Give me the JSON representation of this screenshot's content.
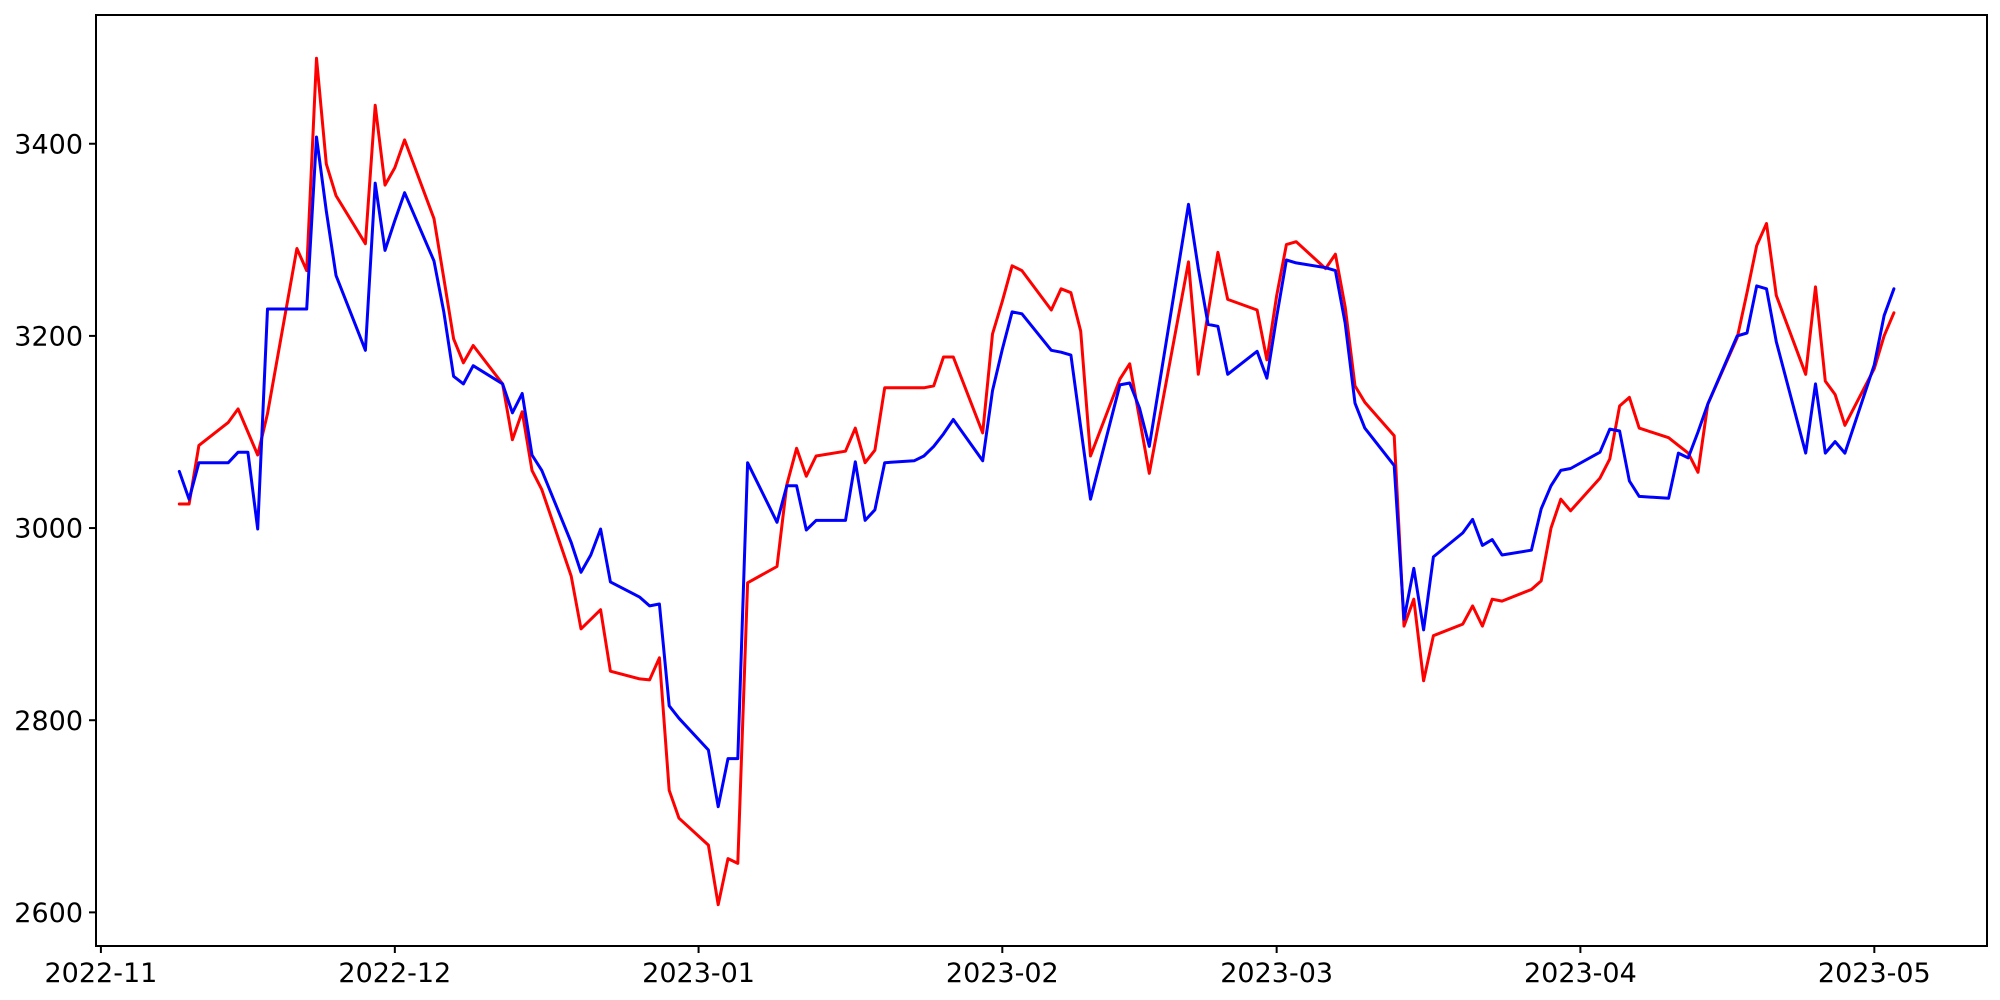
{
  "figure": {
    "background_color": "#ffffff",
    "title": "",
    "xlabel": "",
    "ylabel": ""
  },
  "chart_data": {
    "type": "line",
    "title": "",
    "xlabel": "",
    "ylabel": "",
    "grid": false,
    "legend": null,
    "axes_color": "#000000",
    "ylim": [
      2565,
      3534
    ],
    "xlim_days": [
      -0.5,
      192.5
    ],
    "y_ticks": [
      2600,
      2800,
      3000,
      3200,
      3400
    ],
    "x_ticks": [
      {
        "label": "2022-11",
        "date": "2022-11-01"
      },
      {
        "label": "2022-12",
        "date": "2022-12-01"
      },
      {
        "label": "2023-01",
        "date": "2023-01-01"
      },
      {
        "label": "2023-02",
        "date": "2023-02-01"
      },
      {
        "label": "2023-03",
        "date": "2023-03-01"
      },
      {
        "label": "2023-04",
        "date": "2023-04-01"
      },
      {
        "label": "2023-05",
        "date": "2023-05-01"
      }
    ],
    "dates": [
      "2022-11-09",
      "2022-11-10",
      "2022-11-11",
      "2022-11-14",
      "2022-11-15",
      "2022-11-16",
      "2022-11-17",
      "2022-11-18",
      "2022-11-21",
      "2022-11-22",
      "2022-11-23",
      "2022-11-24",
      "2022-11-25",
      "2022-11-28",
      "2022-11-29",
      "2022-11-30",
      "2022-12-01",
      "2022-12-02",
      "2022-12-05",
      "2022-12-06",
      "2022-12-07",
      "2022-12-08",
      "2022-12-09",
      "2022-12-12",
      "2022-12-13",
      "2022-12-14",
      "2022-12-15",
      "2022-12-16",
      "2022-12-19",
      "2022-12-20",
      "2022-12-21",
      "2022-12-22",
      "2022-12-23",
      "2022-12-26",
      "2022-12-27",
      "2022-12-28",
      "2022-12-29",
      "2022-12-30",
      "2023-01-02",
      "2023-01-03",
      "2023-01-04",
      "2023-01-05",
      "2023-01-06",
      "2023-01-09",
      "2023-01-10",
      "2023-01-11",
      "2023-01-12",
      "2023-01-13",
      "2023-01-16",
      "2023-01-17",
      "2023-01-18",
      "2023-01-19",
      "2023-01-20",
      "2023-01-23",
      "2023-01-24",
      "2023-01-25",
      "2023-01-26",
      "2023-01-27",
      "2023-01-30",
      "2023-01-31",
      "2023-02-01",
      "2023-02-02",
      "2023-02-03",
      "2023-02-06",
      "2023-02-07",
      "2023-02-08",
      "2023-02-09",
      "2023-02-10",
      "2023-02-13",
      "2023-02-14",
      "2023-02-15",
      "2023-02-16",
      "2023-02-17",
      "2023-02-20",
      "2023-02-21",
      "2023-02-22",
      "2023-02-23",
      "2023-02-24",
      "2023-02-27",
      "2023-02-28",
      "2023-03-01",
      "2023-03-02",
      "2023-03-03",
      "2023-03-06",
      "2023-03-07",
      "2023-03-08",
      "2023-03-09",
      "2023-03-10",
      "2023-03-13",
      "2023-03-14",
      "2023-03-15",
      "2023-03-16",
      "2023-03-17",
      "2023-03-20",
      "2023-03-21",
      "2023-03-22",
      "2023-03-23",
      "2023-03-24",
      "2023-03-27",
      "2023-03-28",
      "2023-03-29",
      "2023-03-30",
      "2023-03-31",
      "2023-04-03",
      "2023-04-04",
      "2023-04-05",
      "2023-04-06",
      "2023-04-07",
      "2023-04-10",
      "2023-04-11",
      "2023-04-12",
      "2023-04-13",
      "2023-04-14",
      "2023-04-17",
      "2023-04-18",
      "2023-04-19",
      "2023-04-20",
      "2023-04-21",
      "2023-04-24",
      "2023-04-25",
      "2023-04-26",
      "2023-04-27",
      "2023-04-28",
      "2023-05-01",
      "2023-05-02",
      "2023-05-03"
    ],
    "series": [
      {
        "name": "red-series",
        "color": "#ff0000",
        "values": [
          3025,
          3025,
          3086,
          3110,
          3124,
          3100,
          3076,
          3119,
          3291,
          3268,
          3489,
          3379,
          3346,
          3296,
          3440,
          3357,
          3375,
          3404,
          3322,
          3260,
          3197,
          3172,
          3190,
          3150,
          3092,
          3121,
          3060,
          3040,
          2950,
          2895,
          2905,
          2915,
          2851,
          2843,
          2842,
          2865,
          2727,
          2698,
          2670,
          2608,
          2656,
          2651,
          2943,
          2960,
          3045,
          3083,
          3054,
          3075,
          3080,
          3104,
          3068,
          3081,
          3146,
          3146,
          3146,
          3148,
          3178,
          3178,
          3099,
          3202,
          3236,
          3273,
          3268,
          3227,
          3249,
          3245,
          3205,
          3075,
          3155,
          3171,
          3114,
          3057,
          3112,
          3277,
          3160,
          3224,
          3287,
          3238,
          3227,
          3175,
          3242,
          3295,
          3298,
          3270,
          3285,
          3230,
          3148,
          3131,
          3096,
          2898,
          2926,
          2841,
          2888,
          2900,
          2919,
          2898,
          2926,
          2924,
          2936,
          2945,
          3000,
          3030,
          3018,
          3052,
          3072,
          3127,
          3136,
          3104,
          3094,
          3086,
          3078,
          3058,
          3129,
          3198,
          3245,
          3294,
          3317,
          3242,
          3160,
          3251,
          3153,
          3139,
          3107,
          3166,
          3200,
          3224
        ]
      },
      {
        "name": "blue-series",
        "color": "#0000ff",
        "values": [
          3059,
          3030,
          3068,
          3068,
          3079,
          3079,
          2999,
          3228,
          3228,
          3228,
          3407,
          3330,
          3263,
          3185,
          3359,
          3289,
          3320,
          3349,
          3278,
          3225,
          3158,
          3150,
          3169,
          3150,
          3120,
          3140,
          3076,
          3060,
          2985,
          2954,
          2972,
          2999,
          2944,
          2928,
          2919,
          2921,
          2815,
          2802,
          2769,
          2710,
          2760,
          2760,
          3068,
          3006,
          3044,
          3044,
          2998,
          3008,
          3008,
          3069,
          3008,
          3019,
          3068,
          3070,
          3075,
          3085,
          3098,
          3113,
          3070,
          3143,
          3186,
          3225,
          3223,
          3185,
          3183,
          3180,
          3105,
          3030,
          3149,
          3151,
          3125,
          3085,
          3148,
          3337,
          3270,
          3212,
          3210,
          3160,
          3184,
          3156,
          3220,
          3279,
          3276,
          3271,
          3268,
          3213,
          3130,
          3104,
          3065,
          2905,
          2958,
          2894,
          2970,
          2995,
          3009,
          2982,
          2988,
          2972,
          2977,
          3020,
          3044,
          3060,
          3062,
          3079,
          3103,
          3101,
          3049,
          3033,
          3031,
          3078,
          3073,
          3100,
          3129,
          3200,
          3203,
          3252,
          3249,
          3194,
          3078,
          3150,
          3078,
          3090,
          3078,
          3170,
          3221,
          3249
        ]
      }
    ]
  }
}
